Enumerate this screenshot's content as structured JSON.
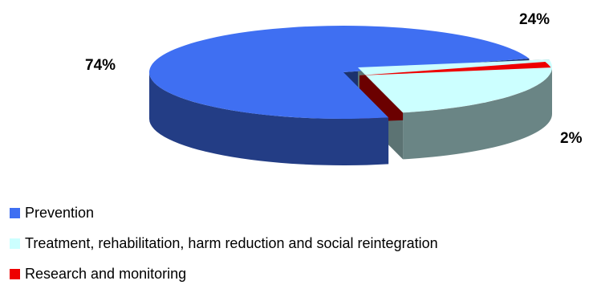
{
  "chart_data": {
    "type": "pie",
    "style": "3d-exploded",
    "categories": [
      "Prevention",
      "Treatment, rehabilitation, harm reduction and social reintegration",
      "Research and monitoring"
    ],
    "values": [
      74,
      24,
      2
    ],
    "data_labels": [
      "74%",
      "24%",
      "2%"
    ],
    "colors": [
      "#3f6ff2",
      "#ccffff",
      "#ee0000"
    ],
    "legend_position": "bottom-left",
    "title": ""
  }
}
